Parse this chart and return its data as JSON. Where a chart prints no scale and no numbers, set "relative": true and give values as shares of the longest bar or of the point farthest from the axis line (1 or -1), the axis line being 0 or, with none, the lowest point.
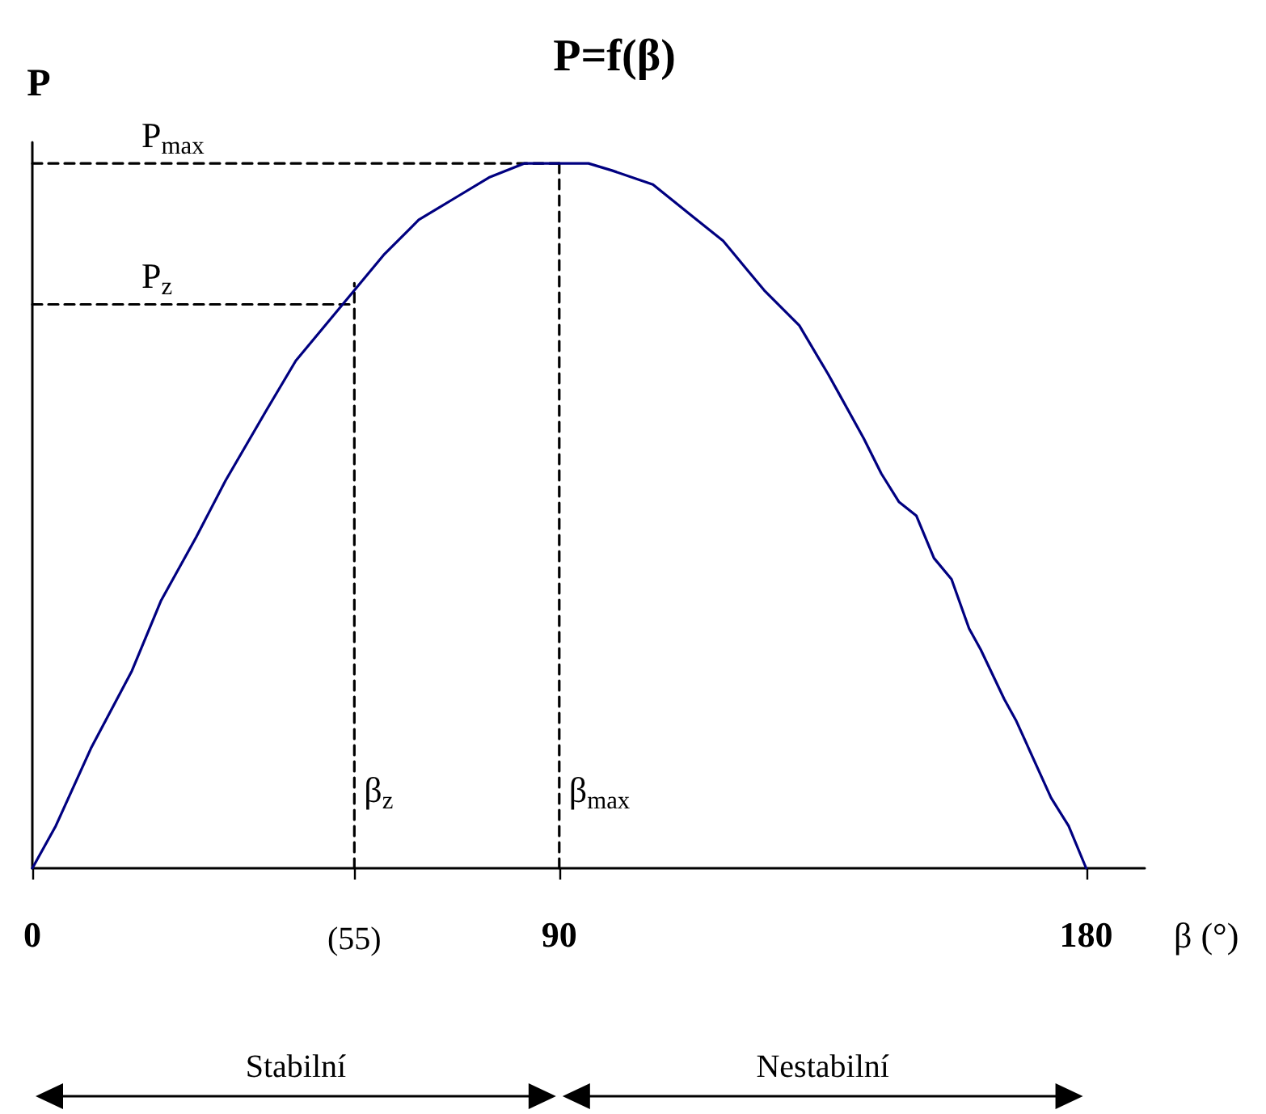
{
  "chart_data": {
    "type": "line",
    "title": "P=f(β)",
    "xlabel": "β (°)",
    "ylabel": "P",
    "relative": true,
    "tick_labels": "x",
    "marker": "none",
    "xlim": [
      0,
      190
    ],
    "xticks": [
      0,
      {
        "value": 55,
        "label": "(55)"
      },
      90,
      180
    ],
    "series": [
      {
        "color": "#000080",
        "x": [
          0,
          4,
          10,
          17,
          22,
          28,
          33,
          40,
          45,
          52,
          60,
          66,
          72,
          78,
          84,
          90,
          95,
          99,
          106,
          112,
          118,
          122,
          125,
          131,
          136,
          138,
          142,
          145,
          148,
          151,
          154,
          157,
          160,
          162,
          166,
          168,
          174,
          177,
          180
        ],
        "values": [
          0,
          0.06,
          0.17,
          0.28,
          0.38,
          0.47,
          0.55,
          0.65,
          0.72,
          0.79,
          0.87,
          0.92,
          0.95,
          0.98,
          1,
          1,
          1,
          0.99,
          0.97,
          0.93,
          0.89,
          0.85,
          0.82,
          0.77,
          0.7,
          0.67,
          0.61,
          0.56,
          0.52,
          0.5,
          0.44,
          0.41,
          0.34,
          0.31,
          0.24,
          0.21,
          0.1,
          0.06,
          0
        ]
      },
      {
        "color": "#000000",
        "line_style": "dashed",
        "x": [
          0,
          90
        ],
        "values": [
          1,
          1
        ]
      },
      {
        "color": "#000000",
        "line_style": "dashed",
        "x": [
          0,
          55
        ],
        "values": [
          0.8,
          0.8
        ]
      },
      {
        "color": "#000000",
        "line_style": "dashed",
        "x": [
          55,
          55
        ],
        "values": [
          0,
          0.83
        ]
      },
      {
        "color": "#000000",
        "line_style": "dashed",
        "x": [
          90,
          90
        ],
        "values": [
          0,
          1
        ]
      }
    ],
    "annotations": [
      {
        "text": "P$_{max}$",
        "x": 17,
        "y": 1
      },
      {
        "text": "P$_{z}$",
        "x": 17,
        "y": 0.8
      },
      {
        "text": "β$_{z}$",
        "x": 55,
        "y": 0.07
      },
      {
        "text": "β$_{max}$",
        "x": 90,
        "y": 0.07
      },
      "Stabilní",
      "Nestabilní"
    ]
  }
}
